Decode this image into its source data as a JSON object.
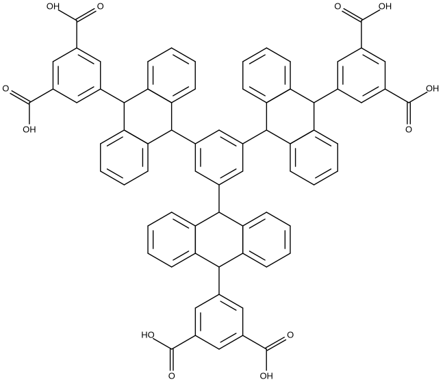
{
  "labels": [
    "OH",
    "O",
    "O",
    "OH",
    "O",
    "OH",
    "OH",
    "O",
    "HO",
    "O",
    "O",
    "OH"
  ]
}
